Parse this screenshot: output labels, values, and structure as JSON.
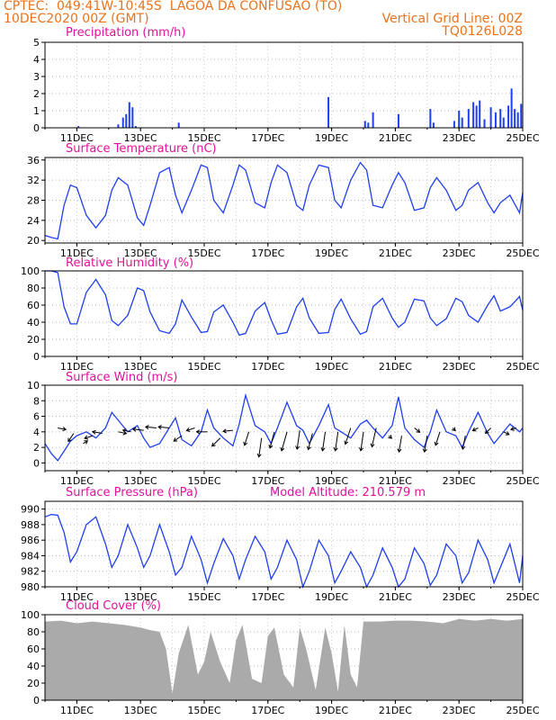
{
  "header": {
    "line1": "CPTEC:  049:41W-10:45S  LAGOA DA CONFUSAO (TO)",
    "line2": "10DEC2020 00Z (GMT)",
    "grid_note": "Vertical Grid Line: 00Z",
    "run_id": "TQ0126L028"
  },
  "colors": {
    "header": "#e8731c",
    "panel_title": "#e0119a",
    "series": "#1f3ff0",
    "cloud": "#aaaaaa",
    "vgrid": "#cccccc",
    "hgrid": "#bbbbbb"
  },
  "chart_data": [
    {
      "id": "precipitation",
      "type": "bar",
      "title": "Precipitation (mm/h)",
      "ylim": [
        0,
        5
      ],
      "yticks": [
        0,
        1,
        2,
        3,
        4,
        5
      ],
      "x_categories": [
        "11DEC",
        "13DEC",
        "15DEC",
        "17DEC",
        "19DEC",
        "21DEC",
        "23DEC",
        "25DEC"
      ],
      "x": [
        11.05,
        12.3,
        12.45,
        12.55,
        12.65,
        12.75,
        12.85,
        14.2,
        18.9,
        20.05,
        20.15,
        20.3,
        21.1,
        22.1,
        22.2,
        22.85,
        23.0,
        23.1,
        23.3,
        23.45,
        23.55,
        23.65,
        23.8,
        24.0,
        24.15,
        24.3,
        24.4,
        24.55,
        24.65,
        24.75,
        24.85,
        24.95
      ],
      "values": [
        0.1,
        0.2,
        0.6,
        0.8,
        1.5,
        1.2,
        0.1,
        0.3,
        1.8,
        0.4,
        0.3,
        0.9,
        0.8,
        1.1,
        0.3,
        0.4,
        1.0,
        0.6,
        1.1,
        1.5,
        1.3,
        1.6,
        0.5,
        1.2,
        0.9,
        1.1,
        0.6,
        1.3,
        2.3,
        1.1,
        0.9,
        1.4
      ]
    },
    {
      "id": "temperature",
      "type": "line",
      "title": "Surface Temperature (nC)",
      "ylim": [
        19.5,
        36.5
      ],
      "yticks": [
        20,
        24,
        28,
        32,
        36
      ],
      "x_categories": [
        "11DEC",
        "13DEC",
        "15DEC",
        "17DEC",
        "19DEC",
        "21DEC",
        "23DEC",
        "25DEC"
      ],
      "x": [
        10.0,
        10.2,
        10.4,
        10.6,
        10.8,
        11.0,
        11.3,
        11.6,
        11.9,
        12.1,
        12.3,
        12.6,
        12.9,
        13.1,
        13.3,
        13.6,
        13.9,
        14.1,
        14.3,
        14.6,
        14.9,
        15.1,
        15.3,
        15.6,
        15.9,
        16.1,
        16.3,
        16.6,
        16.9,
        17.1,
        17.3,
        17.6,
        17.9,
        18.1,
        18.3,
        18.6,
        18.9,
        19.1,
        19.3,
        19.6,
        19.9,
        20.1,
        20.3,
        20.6,
        20.9,
        21.1,
        21.3,
        21.6,
        21.9,
        22.1,
        22.3,
        22.6,
        22.9,
        23.1,
        23.3,
        23.6,
        23.9,
        24.1,
        24.3,
        24.6,
        24.9,
        25.0
      ],
      "values": [
        21.0,
        20.6,
        20.3,
        27.0,
        31.0,
        30.5,
        25.0,
        22.5,
        25.0,
        30.0,
        32.5,
        31.0,
        24.5,
        23.0,
        27.0,
        33.5,
        34.5,
        29.0,
        25.5,
        30.0,
        35.0,
        34.5,
        28.0,
        25.5,
        31.0,
        35.0,
        34.0,
        27.5,
        26.5,
        31.5,
        35.0,
        33.5,
        27.0,
        26.0,
        31.0,
        35.0,
        34.5,
        28.0,
        26.5,
        32.0,
        35.5,
        34.0,
        27.0,
        26.5,
        31.0,
        33.5,
        31.5,
        26.0,
        26.5,
        30.5,
        32.5,
        30.0,
        26.0,
        27.0,
        30.0,
        31.5,
        27.5,
        25.5,
        27.5,
        29.0,
        25.5,
        29.5
      ]
    },
    {
      "id": "humidity",
      "type": "line",
      "title": "Relative Humidity (%)",
      "ylim": [
        0,
        100
      ],
      "yticks": [
        0,
        20,
        40,
        60,
        80,
        100
      ],
      "x_categories": [
        "11DEC",
        "13DEC",
        "15DEC",
        "17DEC",
        "19DEC",
        "21DEC",
        "23DEC",
        "25DEC"
      ],
      "x": [
        10.0,
        10.2,
        10.4,
        10.6,
        10.8,
        11.0,
        11.3,
        11.6,
        11.9,
        12.1,
        12.3,
        12.6,
        12.9,
        13.1,
        13.3,
        13.6,
        13.9,
        14.1,
        14.3,
        14.6,
        14.9,
        15.1,
        15.3,
        15.6,
        15.9,
        16.1,
        16.3,
        16.6,
        16.9,
        17.1,
        17.3,
        17.6,
        17.9,
        18.1,
        18.3,
        18.6,
        18.9,
        19.1,
        19.3,
        19.6,
        19.9,
        20.1,
        20.3,
        20.6,
        20.9,
        21.1,
        21.3,
        21.6,
        21.9,
        22.1,
        22.3,
        22.6,
        22.9,
        23.1,
        23.3,
        23.6,
        23.9,
        24.1,
        24.3,
        24.6,
        24.9,
        25.0
      ],
      "values": [
        100.0,
        100.0,
        98.0,
        58.0,
        38.0,
        38.0,
        75.0,
        90.0,
        72.0,
        42.0,
        36.0,
        48.0,
        80.0,
        77.0,
        52.0,
        30.0,
        27.0,
        38.0,
        66.0,
        46.0,
        28.0,
        29.0,
        52.0,
        60.0,
        40.0,
        25.0,
        27.0,
        53.0,
        63.0,
        43.0,
        26.0,
        28.0,
        58.0,
        68.0,
        45.0,
        27.0,
        28.0,
        55.0,
        67.0,
        44.0,
        26.0,
        29.0,
        58.0,
        68.0,
        45.0,
        34.0,
        40.0,
        67.0,
        65.0,
        45.0,
        36.0,
        44.0,
        68.0,
        64.0,
        48.0,
        40.0,
        60.0,
        71.0,
        53.0,
        58.0,
        70.0,
        54.0
      ]
    },
    {
      "id": "wind",
      "type": "line",
      "title": "Surface Wind (m/s)",
      "ylim": [
        -1,
        10
      ],
      "yticks": [
        0,
        2,
        4,
        6,
        8,
        10
      ],
      "x_categories": [
        "11DEC",
        "13DEC",
        "15DEC",
        "17DEC",
        "19DEC",
        "21DEC",
        "23DEC",
        "25DEC"
      ],
      "x": [
        10.0,
        10.2,
        10.4,
        10.6,
        10.8,
        11.0,
        11.3,
        11.6,
        11.9,
        12.1,
        12.3,
        12.6,
        12.9,
        13.1,
        13.3,
        13.6,
        13.9,
        14.1,
        14.3,
        14.6,
        14.9,
        15.1,
        15.3,
        15.6,
        15.9,
        16.1,
        16.3,
        16.6,
        16.9,
        17.1,
        17.3,
        17.6,
        17.9,
        18.1,
        18.3,
        18.6,
        18.9,
        19.1,
        19.3,
        19.6,
        19.9,
        20.1,
        20.3,
        20.6,
        20.9,
        21.1,
        21.3,
        21.6,
        21.9,
        22.1,
        22.3,
        22.6,
        22.9,
        23.1,
        23.3,
        23.6,
        23.9,
        24.1,
        24.3,
        24.6,
        24.9,
        25.0
      ],
      "values": [
        2.5,
        1.2,
        0.3,
        1.5,
        2.8,
        3.5,
        4.0,
        3.2,
        4.5,
        6.5,
        5.5,
        4.0,
        4.8,
        3.2,
        2.0,
        2.5,
        4.5,
        5.8,
        3.0,
        2.2,
        4.0,
        6.8,
        4.5,
        3.2,
        2.2,
        5.0,
        8.7,
        4.8,
        4.0,
        2.5,
        4.5,
        7.8,
        4.8,
        4.2,
        2.5,
        4.8,
        7.5,
        4.5,
        4.0,
        3.2,
        5.0,
        5.5,
        4.5,
        3.2,
        4.8,
        8.5,
        4.5,
        3.0,
        2.0,
        4.0,
        6.8,
        4.0,
        3.5,
        2.0,
        4.0,
        6.5,
        3.8,
        2.5,
        3.5,
        5.0,
        4.0,
        4.5
      ],
      "vector_x": [
        10.4,
        10.9,
        11.2,
        11.5,
        11.8,
        12.3,
        12.7,
        13.1,
        13.5,
        13.9,
        14.3,
        14.7,
        15.1,
        15.5,
        15.9,
        16.4,
        16.8,
        17.2,
        17.6,
        18.0,
        18.4,
        18.8,
        19.2,
        19.6,
        20.0,
        20.4,
        20.8,
        21.2,
        21.6,
        22.0,
        22.4,
        22.8,
        23.2,
        23.6,
        24.0,
        24.4,
        24.8
      ],
      "vector_y": [
        4.5,
        3.8,
        2.5,
        3.5,
        3.8,
        4.0,
        4.0,
        4.2,
        4.5,
        4.5,
        3.5,
        4.5,
        4.0,
        3.2,
        4.2,
        4.0,
        3.2,
        4.0,
        4.0,
        4.2,
        3.8,
        4.0,
        4.0,
        4.5,
        4.0,
        4.5,
        3.5,
        3.5,
        4.5,
        3.5,
        4.0,
        4.5,
        3.5,
        4.5,
        4.5,
        4.0,
        4.5
      ],
      "vector_u": [
        1.5,
        -1.0,
        0.8,
        -1.5,
        -1.8,
        1.5,
        -1.5,
        -2.0,
        -2.0,
        -2.0,
        -1.5,
        -1.5,
        -2.0,
        -1.5,
        -1.8,
        -0.8,
        -0.5,
        -0.8,
        -1.0,
        -0.5,
        -0.8,
        -0.5,
        -0.5,
        -1.0,
        -0.5,
        -0.8,
        0.5,
        -0.5,
        1.0,
        -0.5,
        -0.8,
        0.5,
        -0.5,
        -1.0,
        -1.0,
        1.0,
        -1.0
      ],
      "vector_v": [
        -0.3,
        -1.5,
        0.5,
        -0.5,
        0.3,
        -0.3,
        0.3,
        0.2,
        0.2,
        0.2,
        -1.0,
        -0.5,
        0.0,
        -1.5,
        -0.2,
        -2.5,
        -3.5,
        -3.0,
        -3.5,
        -3.5,
        -3.0,
        -3.5,
        -3.5,
        -3.0,
        -3.5,
        -3.5,
        -0.5,
        -3.0,
        -0.8,
        -3.0,
        -2.5,
        -0.5,
        -2.5,
        -0.5,
        -1.0,
        -0.5,
        -0.3
      ]
    },
    {
      "id": "pressure",
      "type": "line",
      "title": "Surface Pressure (hPa)",
      "annotation": "Model Altitude: 210.579 m",
      "ylim": [
        980,
        991
      ],
      "yticks": [
        980,
        982,
        984,
        986,
        988,
        990
      ],
      "x_categories": [
        "11DEC",
        "13DEC",
        "15DEC",
        "17DEC",
        "19DEC",
        "21DEC",
        "23DEC",
        "25DEC"
      ],
      "x": [
        10.0,
        10.2,
        10.4,
        10.6,
        10.8,
        11.0,
        11.3,
        11.6,
        11.9,
        12.1,
        12.3,
        12.6,
        12.9,
        13.1,
        13.3,
        13.6,
        13.9,
        14.1,
        14.3,
        14.6,
        14.9,
        15.1,
        15.3,
        15.6,
        15.9,
        16.1,
        16.3,
        16.6,
        16.9,
        17.1,
        17.3,
        17.6,
        17.9,
        18.1,
        18.3,
        18.6,
        18.9,
        19.1,
        19.3,
        19.6,
        19.9,
        20.1,
        20.3,
        20.6,
        20.9,
        21.1,
        21.3,
        21.6,
        21.9,
        22.1,
        22.3,
        22.6,
        22.9,
        23.1,
        23.3,
        23.6,
        23.9,
        24.1,
        24.3,
        24.6,
        24.9,
        25.0
      ],
      "values": [
        989.0,
        989.3,
        989.2,
        987.0,
        983.2,
        984.5,
        988.0,
        989.0,
        985.5,
        982.5,
        984.0,
        988.0,
        985.0,
        982.5,
        984.0,
        988.0,
        984.5,
        981.5,
        982.5,
        986.5,
        983.5,
        980.5,
        983.0,
        986.2,
        984.0,
        981.0,
        983.5,
        986.5,
        984.5,
        981.0,
        982.5,
        986.0,
        983.5,
        980.0,
        982.0,
        986.0,
        984.0,
        980.5,
        982.0,
        984.5,
        982.5,
        980.0,
        981.5,
        985.0,
        982.5,
        980.0,
        981.0,
        985.0,
        983.0,
        980.2,
        981.5,
        985.5,
        984.0,
        980.5,
        981.8,
        986.0,
        983.5,
        980.5,
        982.5,
        985.5,
        980.5,
        984.0
      ]
    },
    {
      "id": "cloud",
      "type": "area",
      "title": "Cloud Cover (%)",
      "ylim": [
        0,
        100
      ],
      "yticks": [
        0,
        20,
        40,
        60,
        80,
        100
      ],
      "x_categories": [
        "11DEC",
        "13DEC",
        "15DEC",
        "17DEC",
        "19DEC",
        "21DEC",
        "23DEC",
        "25DEC"
      ],
      "x": [
        10.0,
        10.5,
        11.0,
        11.5,
        12.0,
        12.5,
        13.0,
        13.3,
        13.6,
        13.8,
        14.0,
        14.2,
        14.5,
        14.8,
        15.0,
        15.2,
        15.5,
        15.8,
        16.0,
        16.2,
        16.5,
        16.8,
        17.0,
        17.2,
        17.5,
        17.8,
        18.0,
        18.2,
        18.5,
        18.8,
        19.0,
        19.2,
        19.4,
        19.6,
        19.8,
        20.0,
        20.5,
        21.0,
        21.5,
        22.0,
        22.5,
        23.0,
        23.5,
        24.0,
        24.5,
        25.0
      ],
      "values": [
        92,
        93,
        90,
        92,
        90,
        88,
        85,
        82,
        80,
        60,
        8,
        55,
        88,
        30,
        45,
        80,
        45,
        20,
        70,
        88,
        25,
        20,
        75,
        85,
        30,
        15,
        85,
        60,
        12,
        85,
        55,
        10,
        88,
        30,
        15,
        92,
        92,
        93,
        93,
        92,
        90,
        95,
        93,
        95,
        93,
        95
      ]
    }
  ]
}
